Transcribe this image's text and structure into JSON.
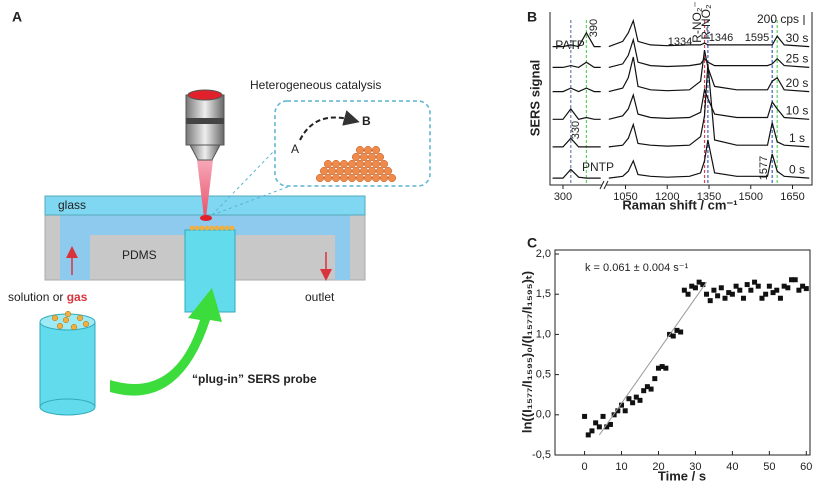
{
  "panel_labels": [
    "A",
    "B",
    "C"
  ],
  "panel_a": {
    "objective_label": "Heterogeneous catalysis",
    "reactant": "A",
    "product": "B",
    "glass": "glass",
    "pdms": "PDMS",
    "inlet": "solution or ",
    "inlet_gas": "gas",
    "outlet": "outlet",
    "probe": "“plug-in” SERS probe"
  },
  "chart_data": [
    {
      "type": "line",
      "ylabel": "SERS signal",
      "xlabel": "Raman shift / cm⁻¹",
      "scale_bar": "200 cps",
      "xlim": [
        250,
        1720
      ],
      "xbreak": [
        450,
        980
      ],
      "ylim": [
        0,
        100
      ],
      "xticks": [
        300,
        1050,
        1200,
        1350,
        1500,
        1650
      ],
      "x": [
        260,
        300,
        330,
        360,
        390,
        420,
        445,
        990,
        1040,
        1060,
        1078,
        1095,
        1140,
        1200,
        1280,
        1320,
        1334,
        1346,
        1370,
        1450,
        1560,
        1577,
        1595,
        1620,
        1710
      ],
      "series": [
        {
          "name": "0 s",
          "color": "#111111",
          "values": [
            4,
            4,
            9,
            4.5,
            4,
            4,
            4,
            4,
            5,
            8,
            14,
            6,
            5,
            4.5,
            5,
            7,
            14,
            26,
            7,
            5,
            5,
            18,
            8,
            5,
            4
          ]
        },
        {
          "name": "1 s",
          "color": "#111111",
          "values": [
            22,
            22,
            27,
            22,
            22,
            22,
            22,
            22,
            23,
            27,
            35,
            24,
            23,
            22.5,
            23,
            28,
            40,
            70,
            26,
            23,
            23,
            36,
            25,
            23,
            22
          ]
        },
        {
          "name": "10 s",
          "color": "#111111",
          "values": [
            38,
            38,
            44,
            38,
            39,
            38,
            38,
            38,
            40,
            44,
            52,
            41,
            39,
            38.5,
            39,
            42,
            55,
            50,
            41,
            39,
            39,
            48,
            44,
            39,
            38
          ]
        },
        {
          "name": "20 s",
          "color": "#111111",
          "values": [
            54,
            54,
            56,
            54,
            56,
            54,
            54,
            54,
            56,
            62,
            74,
            57,
            55,
            54.5,
            55,
            60,
            78,
            68,
            57,
            55,
            55,
            60,
            62,
            55,
            54
          ]
        },
        {
          "name": "25 s",
          "color": "#111111",
          "values": [
            68,
            68,
            69,
            68,
            71,
            68,
            68,
            68,
            70,
            75,
            84,
            71,
            69,
            68.5,
            69,
            70,
            73,
            71,
            69,
            69,
            69,
            70,
            73,
            69,
            68
          ]
        },
        {
          "name": "30 s",
          "color": "#111111",
          "values": [
            80,
            80,
            81,
            80,
            88,
            80,
            80,
            80,
            83,
            88,
            95,
            83,
            81,
            80.5,
            81,
            81,
            82,
            81,
            81,
            81,
            81,
            81,
            86,
            81,
            80
          ]
        }
      ],
      "peak_lines": [
        330,
        390,
        1334,
        1346,
        1577,
        1595
      ],
      "peak_colors": [
        "#6a7fa8",
        "#5ad65a",
        "#e04050",
        "#4060c0",
        "#4060c0",
        "#5ad65a"
      ],
      "annotations": [
        {
          "text": "PATP",
          "color": "#5ad65a"
        },
        {
          "text": "PNTP",
          "color": "#6a7fa8"
        },
        {
          "text": "R-NO₂⁻",
          "color": "#e04050"
        },
        {
          "text": "R-NO₂",
          "color": "#333333"
        }
      ]
    },
    {
      "type": "scatter",
      "xlabel": "Time / s",
      "ylabel": "ln((I₁₅₇₇/I₁₅₉₅)₀/(I₁₅₇₇/I₁₅₉₅)ₜ)",
      "annotation": "k = 0.061 ± 0.004 s⁻¹",
      "xlim": [
        -8,
        61
      ],
      "ylim": [
        -0.5,
        2.05
      ],
      "xticks": [
        0,
        10,
        20,
        30,
        40,
        50,
        60
      ],
      "yticks": [
        {
          "value": -0.5,
          "label": "-0,5"
        },
        {
          "value": 0,
          "label": "0,0"
        },
        {
          "value": 0.5,
          "label": "0,5"
        },
        {
          "value": 1,
          "label": "1,0"
        },
        {
          "value": 1.5,
          "label": "1,5"
        },
        {
          "value": 2,
          "label": "2,0"
        }
      ],
      "series": [
        {
          "color": "#111111",
          "x": [
            0,
            1,
            2,
            3,
            4,
            5,
            6,
            7,
            8,
            9,
            10,
            11,
            12,
            13,
            14,
            15,
            16,
            17,
            18,
            19,
            20,
            21,
            22,
            23,
            24,
            25,
            26,
            27,
            28,
            29,
            30,
            31,
            32,
            33,
            34,
            35,
            36,
            37,
            38,
            39,
            40,
            41,
            42,
            43,
            44,
            45,
            46,
            47,
            48,
            49,
            50,
            51,
            52,
            53,
            54,
            55,
            56,
            57,
            58,
            59,
            60
          ],
          "values": [
            -0.02,
            -0.25,
            -0.2,
            -0.1,
            -0.15,
            -0.02,
            -0.15,
            -0.12,
            0.0,
            0.05,
            0.12,
            0.05,
            0.2,
            0.15,
            0.22,
            0.18,
            0.3,
            0.35,
            0.32,
            0.45,
            0.58,
            0.6,
            0.58,
            1.0,
            0.98,
            1.05,
            1.03,
            1.55,
            1.5,
            1.6,
            1.58,
            1.65,
            1.62,
            1.5,
            1.42,
            1.55,
            1.48,
            1.58,
            1.45,
            1.52,
            1.5,
            1.6,
            1.55,
            1.45,
            1.62,
            1.55,
            1.65,
            1.6,
            1.45,
            1.5,
            1.6,
            1.52,
            1.55,
            1.45,
            1.6,
            1.58,
            1.68,
            1.68,
            1.55,
            1.6,
            1.57
          ]
        },
        {
          "color": "#999999",
          "x": [
            4,
            33
          ],
          "values": [
            -0.25,
            1.65
          ]
        }
      ]
    }
  ]
}
